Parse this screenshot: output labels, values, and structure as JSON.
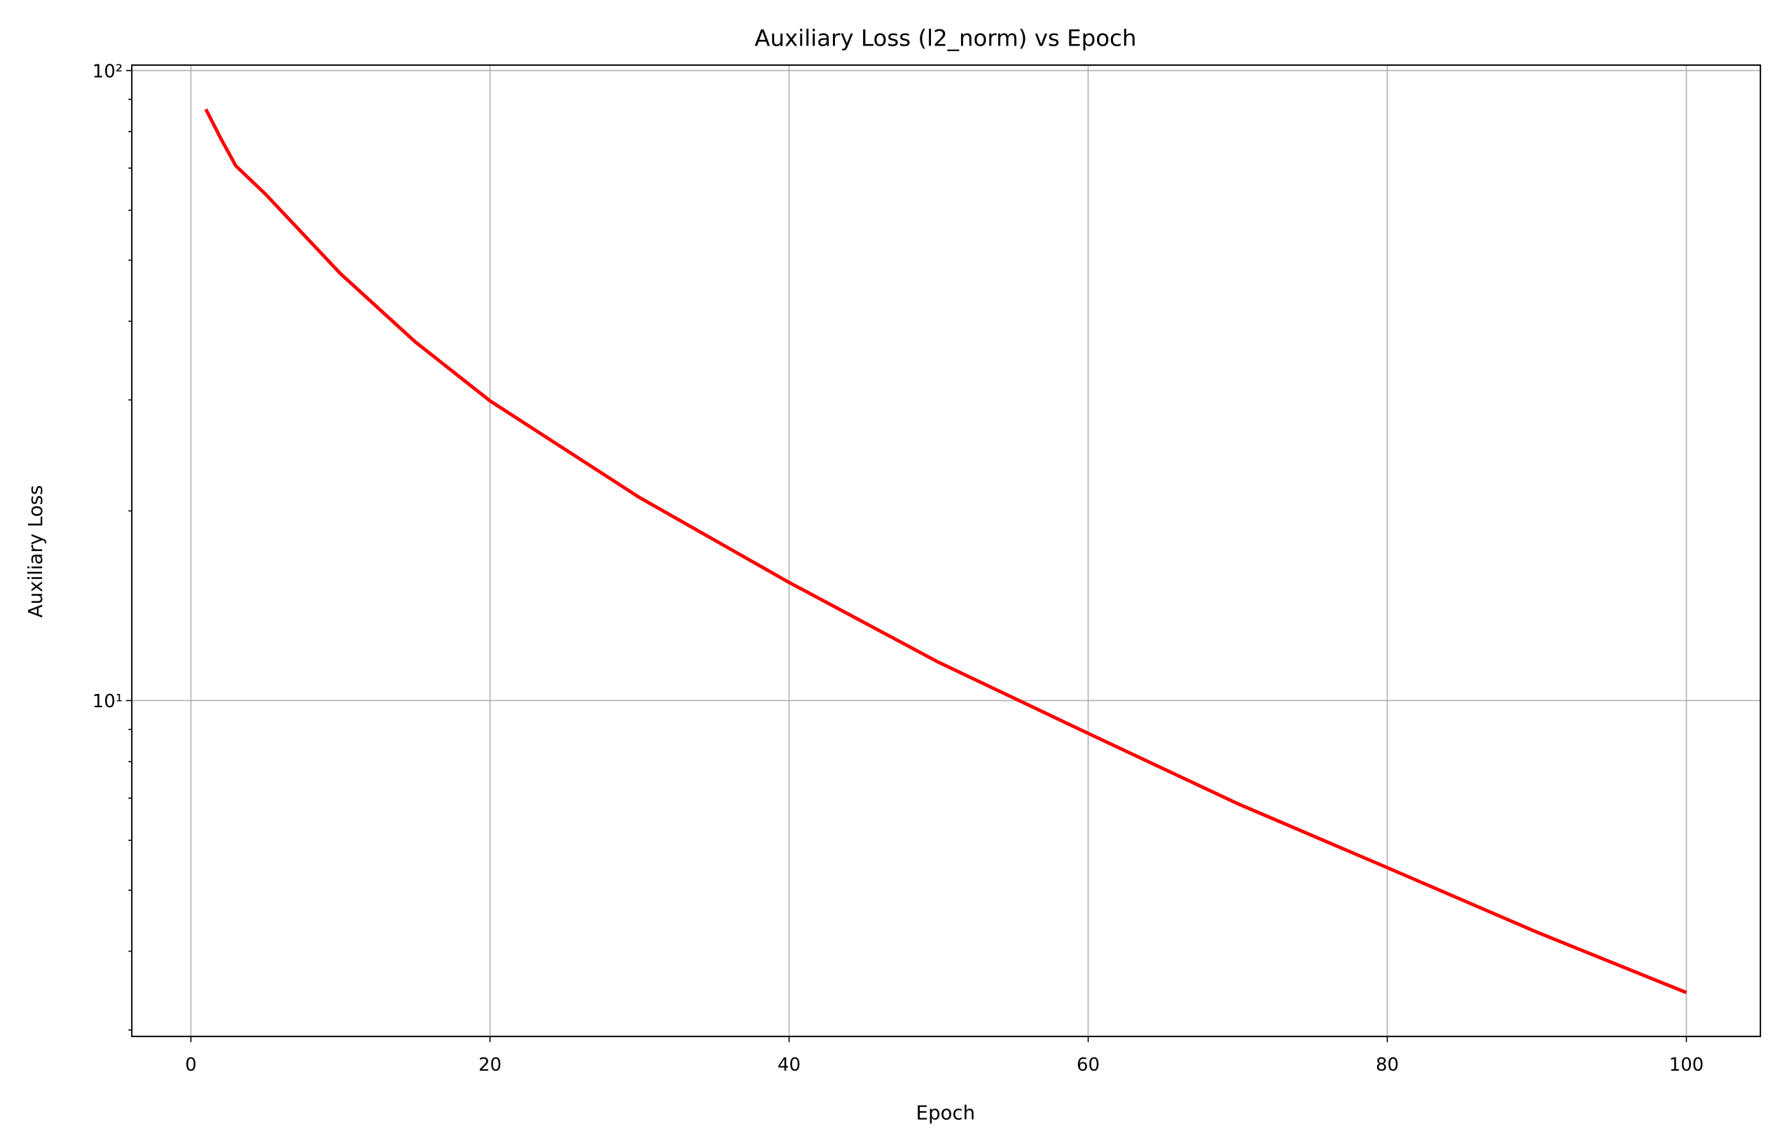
{
  "chart_data": {
    "type": "line",
    "title": "Auxiliary Loss (l2_norm) vs Epoch",
    "x_label": "Epoch",
    "y_label": "Auxiliary Loss",
    "x": [
      1,
      2,
      3,
      5,
      10,
      15,
      20,
      30,
      40,
      50,
      60,
      70,
      80,
      90,
      100
    ],
    "series": [
      {
        "name": "l2_norm",
        "color": "#ff0000",
        "values": [
          86.8,
          78,
          70.6,
          63.6,
          47.6,
          37.1,
          29.9,
          21.0,
          15.4,
          11.5,
          8.87,
          6.86,
          5.43,
          4.29,
          3.44
        ]
      }
    ],
    "xlim": [
      -3.95,
      104.95
    ],
    "xticks": [
      0,
      20,
      40,
      60,
      80,
      100
    ],
    "ylim": [
      2.93,
      102
    ],
    "ylog": true,
    "yticks": [
      {
        "value": 10,
        "label": "10¹"
      },
      {
        "value": 100,
        "label": "10²"
      }
    ],
    "yminorticks": [
      3,
      4,
      5,
      6,
      7,
      8,
      9,
      20,
      30,
      40,
      50,
      60,
      70,
      80,
      90
    ],
    "grid": true
  }
}
